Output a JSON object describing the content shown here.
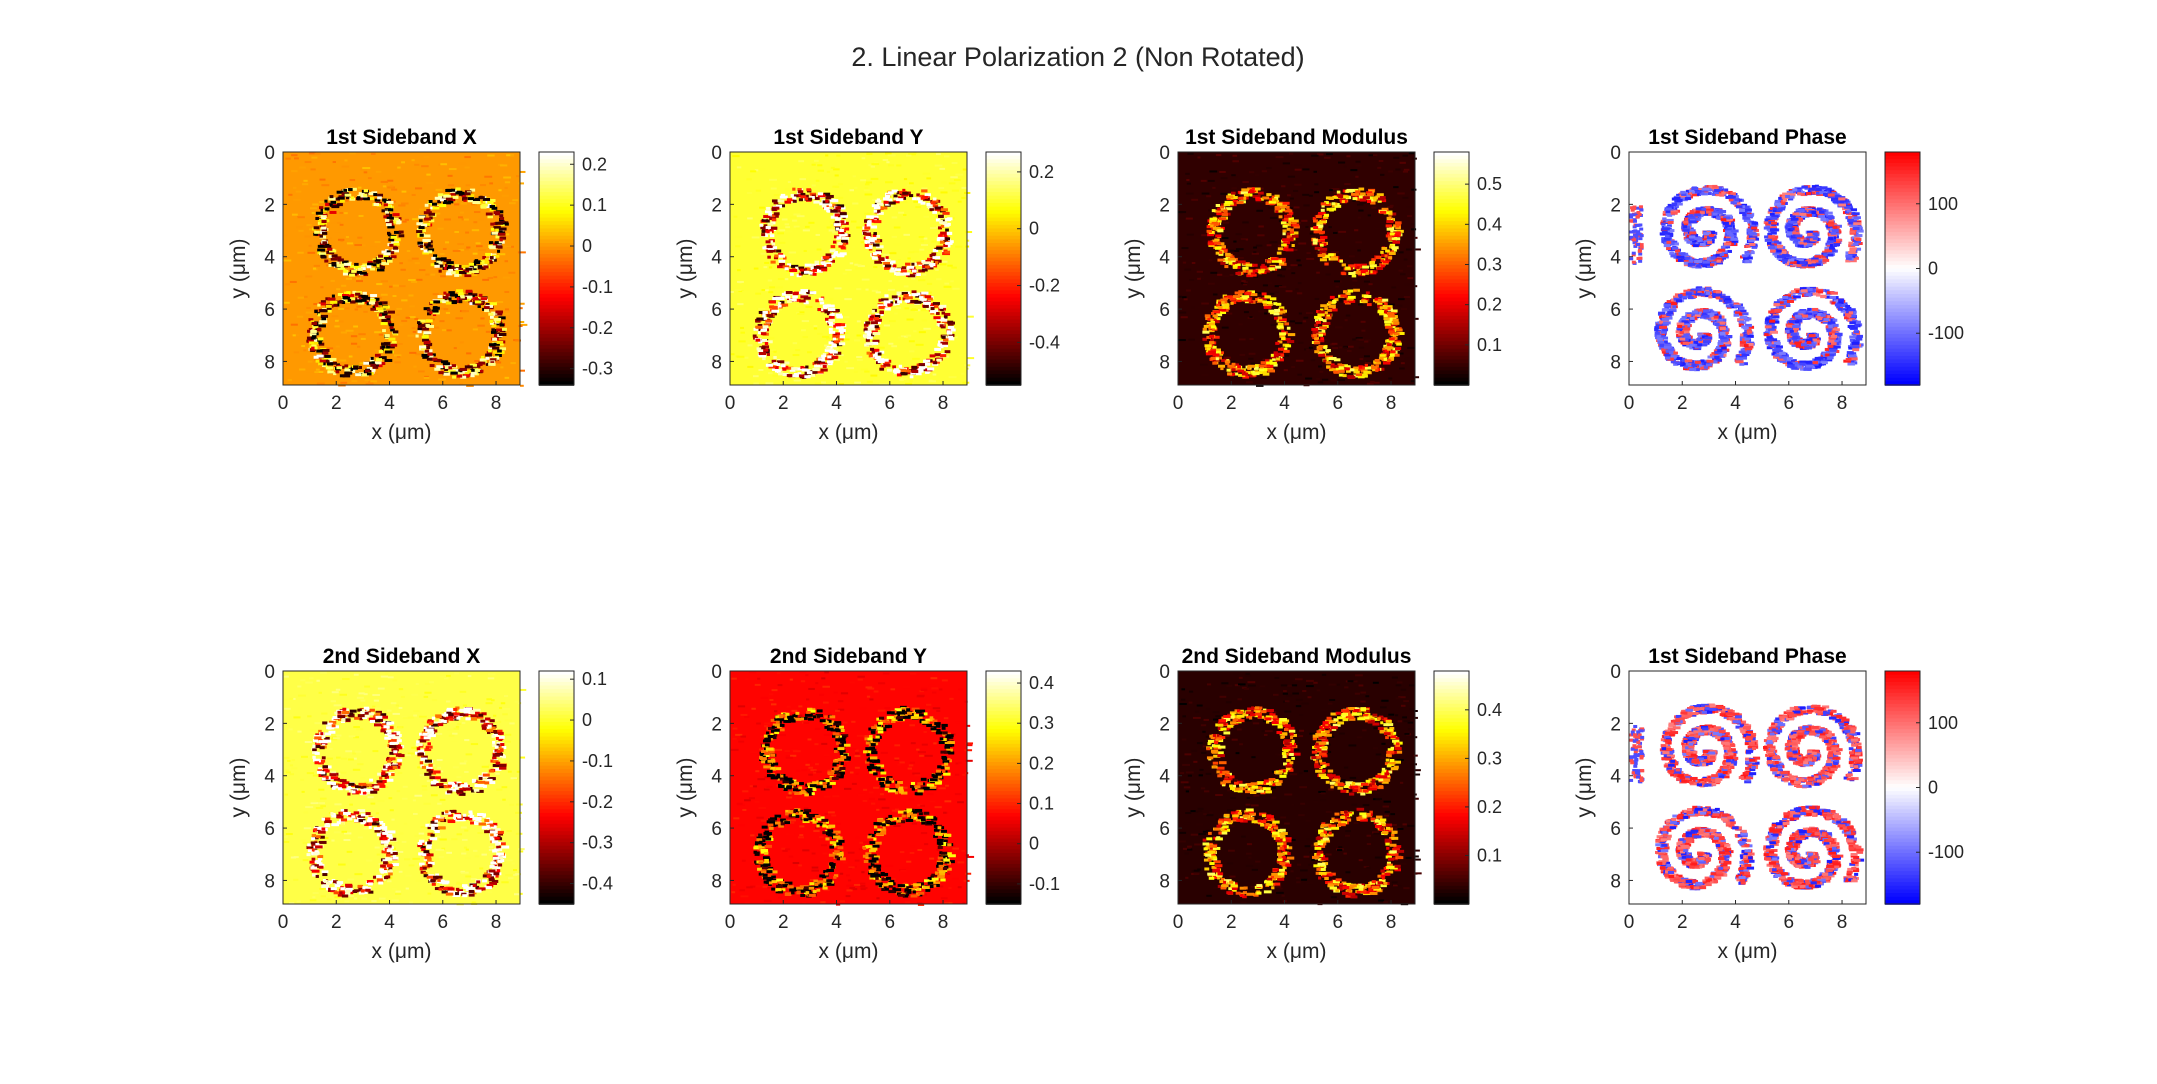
{
  "figure": {
    "title": "2. Linear Polarization 2 (Non Rotated)"
  },
  "chart_data": [
    {
      "type": "heatmap",
      "title": "1st Sideband X",
      "xlabel": "x (μm)",
      "ylabel": "y (μm)",
      "xlim": [
        0,
        8.9
      ],
      "ylim": [
        0,
        8.9
      ],
      "xticks": [
        "0",
        "2",
        "4",
        "6",
        "8"
      ],
      "yticks": [
        "0",
        "2",
        "4",
        "6",
        "8"
      ],
      "colormap": "hot",
      "clim": [
        -0.34,
        0.23
      ],
      "cticks": [
        "-0.3",
        "-0.2",
        "-0.1",
        "0",
        "0.1",
        "0.2"
      ],
      "background_level": 0.6
    },
    {
      "type": "heatmap",
      "title": "1st Sideband Y",
      "xlabel": "x (μm)",
      "ylabel": "y (μm)",
      "xlim": [
        0,
        8.9
      ],
      "ylim": [
        0,
        8.9
      ],
      "xticks": [
        "0",
        "2",
        "4",
        "6",
        "8"
      ],
      "yticks": [
        "0",
        "2",
        "4",
        "6",
        "8"
      ],
      "colormap": "hot",
      "clim": [
        -0.55,
        0.27
      ],
      "cticks": [
        "-0.4",
        "-0.2",
        "0",
        "0.2"
      ],
      "background_level": 0.8
    },
    {
      "type": "heatmap",
      "title": "1st Sideband Modulus",
      "xlabel": "x (μm)",
      "ylabel": "y (μm)",
      "xlim": [
        0,
        8.9
      ],
      "ylim": [
        0,
        8.9
      ],
      "xticks": [
        "0",
        "2",
        "4",
        "6",
        "8"
      ],
      "yticks": [
        "0",
        "2",
        "4",
        "6",
        "8"
      ],
      "colormap": "hot",
      "clim": [
        0,
        0.58
      ],
      "cticks": [
        "0.1",
        "0.2",
        "0.3",
        "0.4",
        "0.5"
      ],
      "background_level": 0.07
    },
    {
      "type": "heatmap",
      "title": "1st Sideband Phase",
      "xlabel": "x (μm)",
      "ylabel": "y (μm)",
      "xlim": [
        0,
        8.9
      ],
      "ylim": [
        0,
        8.9
      ],
      "xticks": [
        "0",
        "2",
        "4",
        "6",
        "8"
      ],
      "yticks": [
        "0",
        "2",
        "4",
        "6",
        "8"
      ],
      "colormap": "blue-white-red",
      "clim": [
        -180,
        180
      ],
      "cticks": [
        "-100",
        "0",
        "100"
      ],
      "dominant": "blue"
    },
    {
      "type": "heatmap",
      "title": "2nd Sideband X",
      "xlabel": "x (μm)",
      "ylabel": "y (μm)",
      "xlim": [
        0,
        8.9
      ],
      "ylim": [
        0,
        8.9
      ],
      "xticks": [
        "0",
        "2",
        "4",
        "6",
        "8"
      ],
      "yticks": [
        "0",
        "2",
        "4",
        "6",
        "8"
      ],
      "colormap": "hot",
      "clim": [
        -0.45,
        0.12
      ],
      "cticks": [
        "-0.4",
        "-0.3",
        "-0.2",
        "-0.1",
        "0",
        "0.1"
      ],
      "background_level": 0.82
    },
    {
      "type": "heatmap",
      "title": "2nd Sideband Y",
      "xlabel": "x (μm)",
      "ylabel": "y (μm)",
      "xlim": [
        0,
        8.9
      ],
      "ylim": [
        0,
        8.9
      ],
      "xticks": [
        "0",
        "2",
        "4",
        "6",
        "8"
      ],
      "yticks": [
        "0",
        "2",
        "4",
        "6",
        "8"
      ],
      "colormap": "hot",
      "clim": [
        -0.15,
        0.43
      ],
      "cticks": [
        "-0.1",
        "0",
        "0.1",
        "0.2",
        "0.3",
        "0.4"
      ],
      "background_level": 0.38
    },
    {
      "type": "heatmap",
      "title": "2nd Sideband Modulus",
      "xlabel": "x (μm)",
      "ylabel": "y (μm)",
      "xlim": [
        0,
        8.9
      ],
      "ylim": [
        0,
        8.9
      ],
      "xticks": [
        "0",
        "2",
        "4",
        "6",
        "8"
      ],
      "yticks": [
        "0",
        "2",
        "4",
        "6",
        "8"
      ],
      "colormap": "hot",
      "clim": [
        0,
        0.48
      ],
      "cticks": [
        "0.1",
        "0.2",
        "0.3",
        "0.4"
      ],
      "background_level": 0.06
    },
    {
      "type": "heatmap",
      "title": "1st Sideband Phase",
      "xlabel": "x (μm)",
      "ylabel": "y (μm)",
      "xlim": [
        0,
        8.9
      ],
      "ylim": [
        0,
        8.9
      ],
      "xticks": [
        "0",
        "2",
        "4",
        "6",
        "8"
      ],
      "yticks": [
        "0",
        "2",
        "4",
        "6",
        "8"
      ],
      "colormap": "blue-white-red",
      "clim": [
        -180,
        180
      ],
      "cticks": [
        "-100",
        "0",
        "100"
      ],
      "dominant": "red"
    }
  ]
}
